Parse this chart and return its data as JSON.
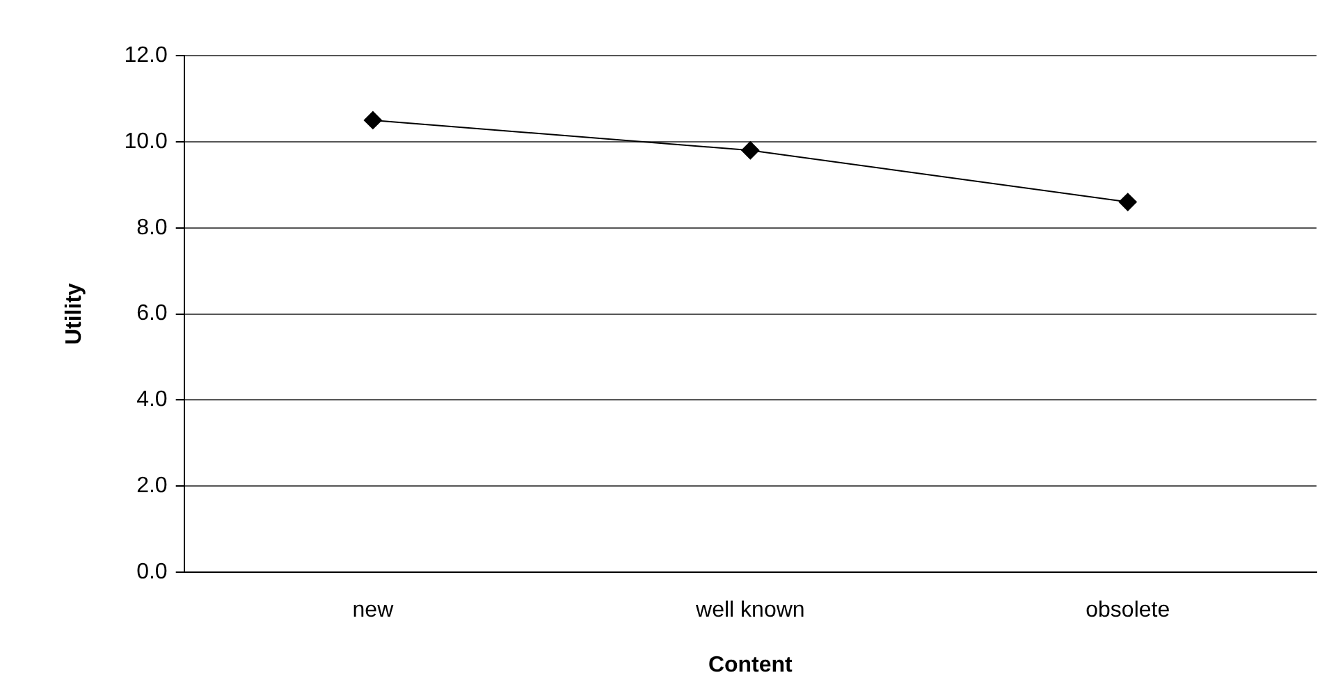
{
  "chart_data": {
    "type": "line",
    "xlabel": "Content",
    "ylabel": "Utility",
    "categories": [
      "new",
      "well known",
      "obsolete"
    ],
    "series": [
      {
        "color": "#000000",
        "values": [
          10.5,
          9.8,
          8.6
        ]
      }
    ],
    "ylim": [
      0,
      12
    ],
    "yticks": [
      {
        "value": 0,
        "label": "0.0"
      },
      {
        "value": 2,
        "label": "2.0"
      },
      {
        "value": 4,
        "label": "4.0"
      },
      {
        "value": 6,
        "label": "6.0"
      },
      {
        "value": 8,
        "label": "8.0"
      },
      {
        "value": 10,
        "label": "10.0"
      },
      {
        "value": 12,
        "label": "12.0"
      }
    ],
    "grid": "y",
    "legend": false,
    "marker": "diamond",
    "line_style": "solid"
  }
}
